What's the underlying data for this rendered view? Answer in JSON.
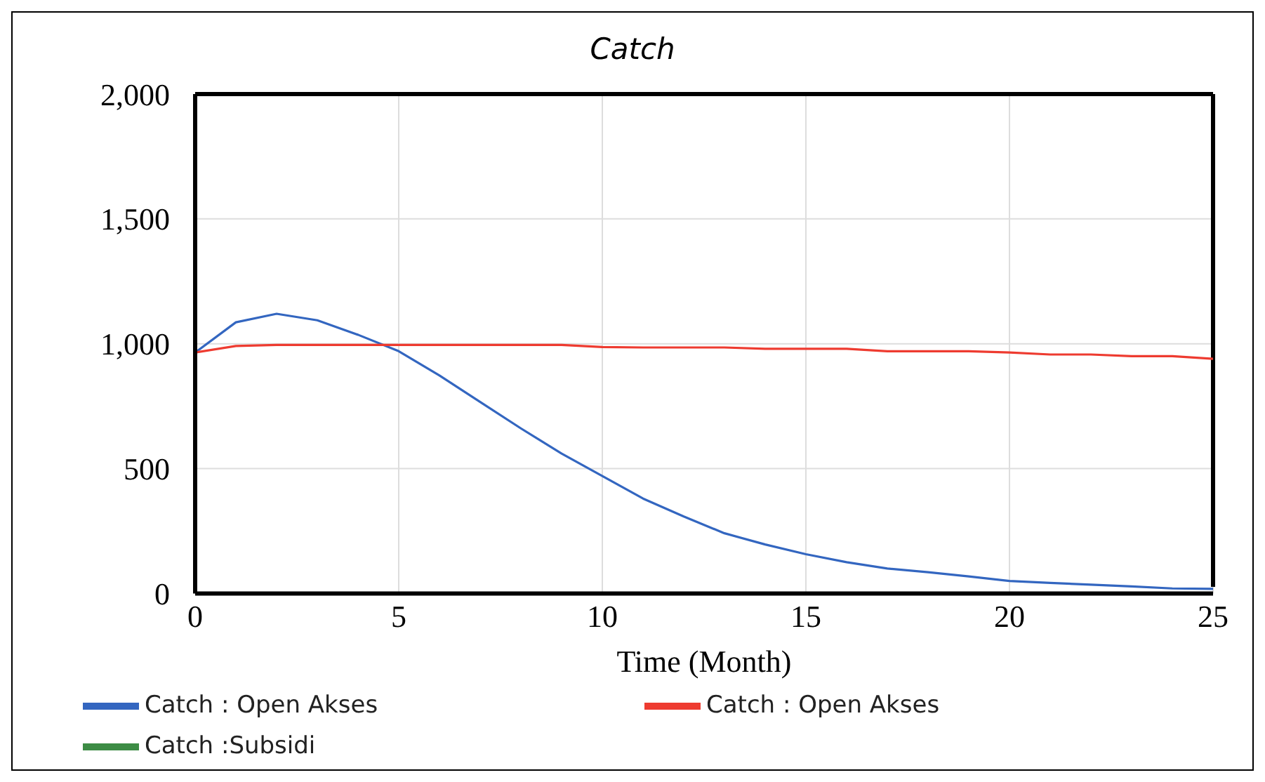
{
  "chart_data": {
    "type": "line",
    "title": "Catch",
    "xlabel": "Time (Month)",
    "x": [
      0,
      1,
      2,
      3,
      4,
      5,
      6,
      7,
      8,
      9,
      10,
      11,
      12,
      13,
      14,
      15,
      16,
      17,
      18,
      19,
      20,
      21,
      22,
      23,
      24,
      25
    ],
    "series": [
      {
        "name": "Catch : Open Akses",
        "color": "#3366c0",
        "values": [
          965,
          1086,
          1120,
          1094,
          1036,
          970,
          873,
          767,
          661,
          560,
          470,
          380,
          308,
          241,
          196,
          157,
          125,
          100,
          85,
          68,
          50,
          42,
          35,
          28,
          20,
          18
        ]
      },
      {
        "name": "Catch : Open Akses",
        "color": "#ee3b30",
        "values": [
          965,
          991,
          995,
          995,
          995,
          995,
          995,
          995,
          995,
          995,
          987,
          985,
          985,
          985,
          980,
          980,
          980,
          970,
          970,
          970,
          965,
          957,
          957,
          950,
          950,
          940
        ]
      },
      {
        "name": "Catch :Subsidi",
        "color": "#3d8c45",
        "values": [
          null,
          null,
          null,
          null,
          null,
          null,
          null,
          null,
          null,
          null,
          null,
          null,
          null,
          null,
          null,
          null,
          null,
          null,
          null,
          null,
          null,
          null,
          null,
          null,
          null,
          null
        ]
      }
    ],
    "xlim": [
      0,
      25
    ],
    "xticks": [
      0,
      5,
      10,
      15,
      20,
      25
    ],
    "ylim": [
      0,
      2000
    ],
    "yticks": [
      {
        "value": 0,
        "label": "0"
      },
      {
        "value": 500,
        "label": "500"
      },
      {
        "value": 1000,
        "label": "1,000"
      },
      {
        "value": 1500,
        "label": "1,500"
      },
      {
        "value": 2000,
        "label": "2,000"
      }
    ],
    "grid": true,
    "legend": "bottom",
    "marker": "none",
    "line_style": "solid"
  }
}
